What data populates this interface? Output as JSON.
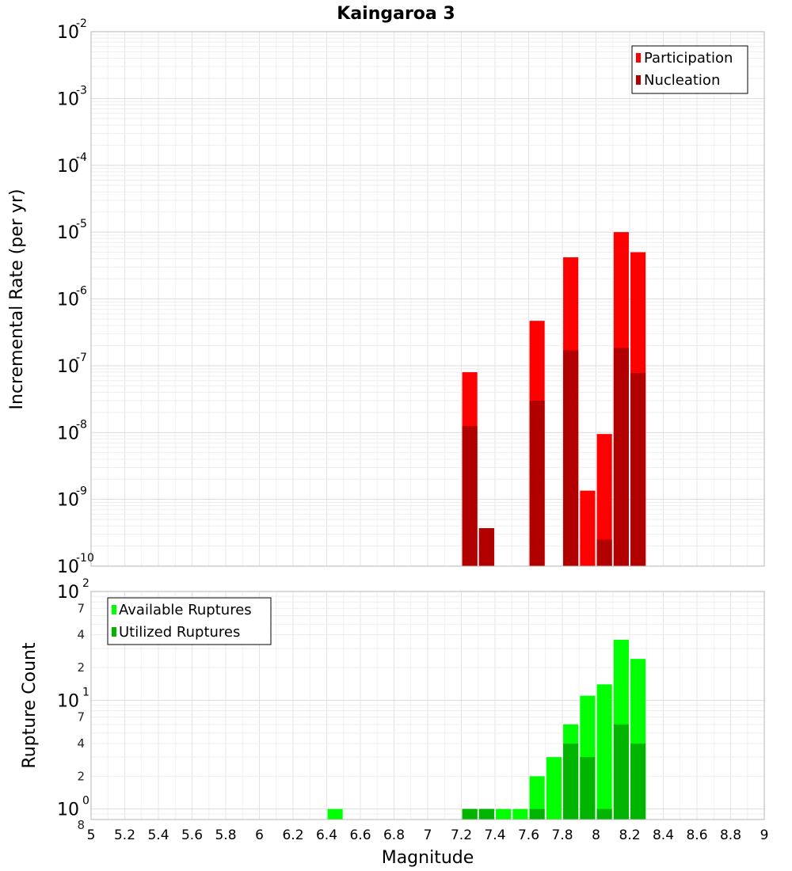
{
  "chart_data": [
    {
      "type": "bar",
      "title": "Kaingaroa 3",
      "xlabel": "",
      "ylabel": "Incremental Rate (per yr)",
      "xlim": [
        5,
        9
      ],
      "ylim": [
        1e-10,
        0.01
      ],
      "yscale": "log",
      "x_ticks": [
        "5",
        "5.2",
        "5.4",
        "5.6",
        "5.8",
        "6",
        "6.2",
        "6.4",
        "6.6",
        "6.8",
        "7",
        "7.2",
        "7.4",
        "7.6",
        "7.8",
        "8",
        "8.2",
        "8.4",
        "8.6",
        "8.8",
        "9"
      ],
      "y_ticks": [
        {
          "base": "10",
          "exp": "-10",
          "value": 1e-10
        },
        {
          "base": "10",
          "exp": "-9",
          "value": 1e-09
        },
        {
          "base": "10",
          "exp": "-8",
          "value": 1e-08
        },
        {
          "base": "10",
          "exp": "-7",
          "value": 1e-07
        },
        {
          "base": "10",
          "exp": "-6",
          "value": 1e-06
        },
        {
          "base": "10",
          "exp": "-5",
          "value": 1e-05
        },
        {
          "base": "10",
          "exp": "-4",
          "value": 0.0001
        },
        {
          "base": "10",
          "exp": "-3",
          "value": 0.001
        },
        {
          "base": "10",
          "exp": "-2",
          "value": 0.01
        }
      ],
      "grid": true,
      "legend_position": "top-right",
      "series": [
        {
          "name": "Participation",
          "color": "#ff0000",
          "x": [
            7.25,
            7.35,
            7.65,
            7.85,
            7.95,
            8.05,
            8.15,
            8.25
          ],
          "values": [
            8e-08,
            3.7e-10,
            4.7e-07,
            4.2e-06,
            1.35e-09,
            9.5e-09,
            1e-05,
            5e-06
          ]
        },
        {
          "name": "Nucleation",
          "color": "#b20000",
          "x": [
            7.25,
            7.35,
            7.65,
            7.85,
            8.05,
            8.15,
            8.25
          ],
          "values": [
            1.25e-08,
            3.7e-10,
            3e-08,
            1.7e-07,
            2.5e-10,
            1.85e-07,
            7.8e-08
          ]
        }
      ]
    },
    {
      "type": "bar",
      "title": "",
      "xlabel": "Magnitude",
      "ylabel": "Rupture Count",
      "xlim": [
        5,
        9
      ],
      "ylim": [
        0.8,
        100
      ],
      "yscale": "log",
      "x_ticks": [
        "5",
        "5.2",
        "5.4",
        "5.6",
        "5.8",
        "6",
        "6.2",
        "6.4",
        "6.6",
        "6.8",
        "7",
        "7.2",
        "7.4",
        "7.6",
        "7.8",
        "8",
        "8.2",
        "8.4",
        "8.6",
        "8.8",
        "9"
      ],
      "y_major_ticks": [
        {
          "base": "10",
          "exp": "0",
          "value": 1
        },
        {
          "base": "10",
          "exp": "1",
          "value": 10
        },
        {
          "base": "10",
          "exp": "2",
          "value": 100
        }
      ],
      "y_minor_ticks": [
        {
          "label": "8",
          "value": 0.8
        },
        {
          "label": "2",
          "value": 2
        },
        {
          "label": "4",
          "value": 4
        },
        {
          "label": "7",
          "value": 7
        },
        {
          "label": "2",
          "value": 20
        },
        {
          "label": "4",
          "value": 40
        },
        {
          "label": "7",
          "value": 70
        }
      ],
      "grid": true,
      "legend_position": "top-left",
      "series": [
        {
          "name": "Available Ruptures",
          "color": "#00ff00",
          "x": [
            6.45,
            7.25,
            7.35,
            7.45,
            7.55,
            7.65,
            7.75,
            7.85,
            7.95,
            8.05,
            8.15,
            8.25
          ],
          "values": [
            1,
            1,
            1,
            1,
            1,
            2,
            3,
            6,
            11,
            14,
            36,
            24
          ]
        },
        {
          "name": "Utilized Ruptures",
          "color": "#00b400",
          "x": [
            7.25,
            7.35,
            7.65,
            7.85,
            7.95,
            8.05,
            8.15,
            8.25
          ],
          "values": [
            1,
            1,
            1,
            4,
            3,
            1,
            6,
            4
          ]
        }
      ]
    }
  ]
}
